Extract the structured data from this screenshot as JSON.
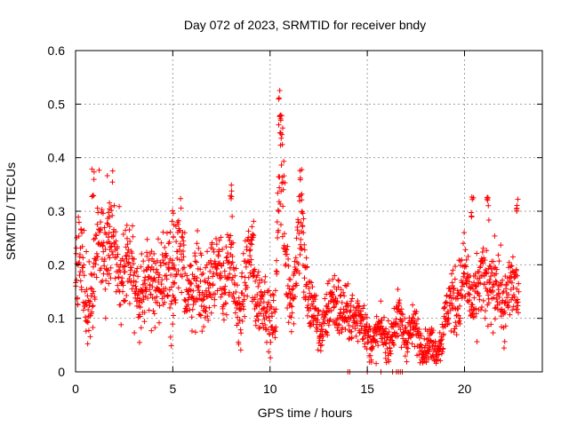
{
  "chart_data": {
    "type": "scatter",
    "title": "Day 072 of 2023, SRMTID for receiver bndy",
    "xlabel": "GPS time / hours",
    "ylabel": "SRMTID / TECUs",
    "xlim": [
      0,
      24
    ],
    "ylim": [
      0,
      0.6
    ],
    "xticks": [
      0,
      5,
      10,
      15,
      20
    ],
    "yticks": [
      0,
      0.1,
      0.2,
      0.3,
      0.4,
      0.5,
      0.6
    ],
    "xtick_labels": [
      "0",
      "5",
      "10",
      "15",
      "20"
    ],
    "ytick_labels": [
      "0",
      "0.1",
      "0.2",
      "0.3",
      "0.4",
      "0.5",
      "0.6"
    ],
    "grid": true,
    "marker": "+",
    "color": "#ff0000",
    "series": [
      {
        "name": "SRMTID",
        "trend": [
          [
            0.0,
            0.19
          ],
          [
            0.3,
            0.2
          ],
          [
            0.6,
            0.14
          ],
          [
            0.9,
            0.17
          ],
          [
            1.2,
            0.22
          ],
          [
            1.6,
            0.24
          ],
          [
            2.0,
            0.22
          ],
          [
            2.5,
            0.19
          ],
          [
            3.0,
            0.17
          ],
          [
            3.5,
            0.15
          ],
          [
            4.0,
            0.18
          ],
          [
            4.5,
            0.17
          ],
          [
            5.0,
            0.2
          ],
          [
            5.5,
            0.19
          ],
          [
            6.0,
            0.16
          ],
          [
            6.5,
            0.15
          ],
          [
            7.0,
            0.18
          ],
          [
            7.5,
            0.19
          ],
          [
            8.0,
            0.17
          ],
          [
            8.5,
            0.12
          ],
          [
            9.0,
            0.21
          ],
          [
            9.5,
            0.13
          ],
          [
            10.0,
            0.1
          ],
          [
            10.3,
            0.12
          ],
          [
            10.5,
            0.4
          ],
          [
            10.8,
            0.22
          ],
          [
            11.2,
            0.14
          ],
          [
            11.6,
            0.28
          ],
          [
            12.0,
            0.13
          ],
          [
            12.5,
            0.08
          ],
          [
            13.0,
            0.11
          ],
          [
            13.5,
            0.14
          ],
          [
            14.0,
            0.09
          ],
          [
            14.5,
            0.12
          ],
          [
            15.0,
            0.06
          ],
          [
            15.5,
            0.07
          ],
          [
            16.0,
            0.06
          ],
          [
            16.5,
            0.09
          ],
          [
            17.0,
            0.08
          ],
          [
            17.5,
            0.07
          ],
          [
            18.0,
            0.05
          ],
          [
            18.5,
            0.04
          ],
          [
            19.0,
            0.09
          ],
          [
            19.5,
            0.15
          ],
          [
            20.0,
            0.16
          ],
          [
            20.5,
            0.14
          ],
          [
            21.0,
            0.16
          ],
          [
            21.5,
            0.17
          ],
          [
            22.0,
            0.12
          ],
          [
            22.3,
            0.17
          ],
          [
            22.6,
            0.14
          ],
          [
            22.8,
            0.13
          ]
        ],
        "spikes": [
          [
            0.9,
            0.38
          ],
          [
            1.7,
            0.32
          ],
          [
            5.0,
            0.31
          ],
          [
            8.0,
            0.35
          ],
          [
            9.1,
            0.31
          ],
          [
            10.5,
            0.52
          ],
          [
            10.6,
            0.48
          ],
          [
            11.6,
            0.38
          ],
          [
            20.4,
            0.34
          ],
          [
            21.2,
            0.33
          ],
          [
            22.7,
            0.33
          ]
        ],
        "zeros": [
          14.0,
          14.1,
          15.0,
          15.7,
          16.3,
          16.5,
          16.6,
          16.7,
          16.8
        ]
      }
    ]
  }
}
